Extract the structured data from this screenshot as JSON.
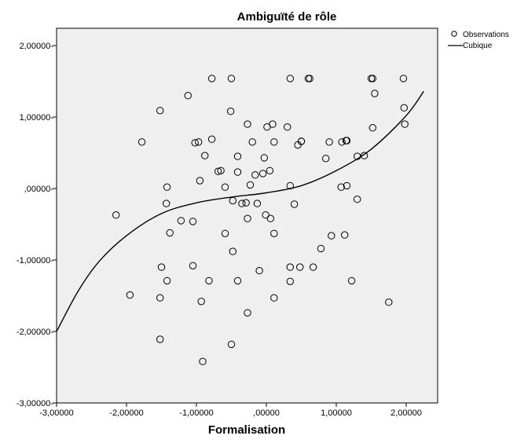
{
  "chart_data": {
    "type": "scatter",
    "title": "Ambiguïté de rôle",
    "xlabel": "Formalisation",
    "ylabel": "",
    "xlim": [
      -3.0,
      2.25
    ],
    "ylim": [
      -3.0,
      2.0
    ],
    "xticks": [
      -3,
      -2,
      -1,
      0,
      1,
      2
    ],
    "yticks": [
      -3,
      -2,
      -1,
      0,
      1,
      2
    ],
    "xtick_labels": [
      "-3,00000",
      "-2,00000",
      "-1,00000",
      ",00000",
      "1,00000",
      "2,00000"
    ],
    "ytick_labels": [
      "-3,00000-",
      "-2,00000-",
      "-1,00000-",
      ",00000-",
      "1,00000-",
      "2,00000-"
    ],
    "grid": false,
    "legend_position": "top-right",
    "plot_background": "#efefef",
    "marker_color": "#000000",
    "line_color": "#000000",
    "series": [
      {
        "name": "Observations",
        "kind": "points",
        "points": [
          [
            -2.15,
            -0.37
          ],
          [
            -1.95,
            -1.49
          ],
          [
            -1.78,
            0.65
          ],
          [
            -1.52,
            1.09
          ],
          [
            -1.5,
            -1.1
          ],
          [
            -1.52,
            -1.53
          ],
          [
            -1.52,
            -2.11
          ],
          [
            -1.43,
            -0.21
          ],
          [
            -1.42,
            0.02
          ],
          [
            -1.42,
            -1.29
          ],
          [
            -1.38,
            -0.62
          ],
          [
            -1.22,
            -0.45
          ],
          [
            -1.12,
            1.3
          ],
          [
            -1.05,
            -0.46
          ],
          [
            -1.05,
            -1.08
          ],
          [
            -1.02,
            0.64
          ],
          [
            -0.97,
            0.65
          ],
          [
            -0.95,
            0.11
          ],
          [
            -0.93,
            -1.58
          ],
          [
            -0.91,
            -2.42
          ],
          [
            -0.88,
            0.46
          ],
          [
            -0.82,
            -1.29
          ],
          [
            -0.78,
            1.54
          ],
          [
            -0.78,
            0.69
          ],
          [
            -0.69,
            0.24
          ],
          [
            -0.65,
            0.25
          ],
          [
            -0.59,
            0.02
          ],
          [
            -0.59,
            -0.63
          ],
          [
            -0.51,
            1.08
          ],
          [
            -0.5,
            1.54
          ],
          [
            -0.5,
            -2.18
          ],
          [
            -0.48,
            -0.17
          ],
          [
            -0.48,
            -0.88
          ],
          [
            -0.41,
            0.45
          ],
          [
            -0.41,
            -1.29
          ],
          [
            -0.41,
            0.23
          ],
          [
            -0.35,
            -0.21
          ],
          [
            -0.29,
            -0.2
          ],
          [
            -0.27,
            0.9
          ],
          [
            -0.27,
            -0.42
          ],
          [
            -0.27,
            -1.74
          ],
          [
            -0.23,
            0.05
          ],
          [
            -0.2,
            0.65
          ],
          [
            -0.16,
            0.19
          ],
          [
            -0.13,
            -0.21
          ],
          [
            -0.1,
            -1.15
          ],
          [
            -0.05,
            0.21
          ],
          [
            -0.03,
            0.43
          ],
          [
            -0.01,
            -0.37
          ],
          [
            0.01,
            0.86
          ],
          [
            0.05,
            0.25
          ],
          [
            0.06,
            -0.42
          ],
          [
            0.09,
            0.9
          ],
          [
            0.11,
            -0.63
          ],
          [
            0.11,
            0.65
          ],
          [
            0.11,
            -1.53
          ],
          [
            0.3,
            0.86
          ],
          [
            0.34,
            0.04
          ],
          [
            0.34,
            1.54
          ],
          [
            0.34,
            -1.1
          ],
          [
            0.34,
            -1.3
          ],
          [
            0.4,
            -0.22
          ],
          [
            0.45,
            0.61
          ],
          [
            0.48,
            -1.1
          ],
          [
            0.5,
            0.66
          ],
          [
            0.5,
            0.66
          ],
          [
            0.6,
            1.54
          ],
          [
            0.62,
            1.54
          ],
          [
            0.67,
            -1.1
          ],
          [
            0.78,
            -0.84
          ],
          [
            0.85,
            0.42
          ],
          [
            0.9,
            0.65
          ],
          [
            0.93,
            -0.66
          ],
          [
            1.07,
            0.02
          ],
          [
            1.08,
            0.65
          ],
          [
            1.12,
            -0.65
          ],
          [
            1.14,
            0.67
          ],
          [
            1.15,
            0.67
          ],
          [
            1.15,
            0.04
          ],
          [
            1.22,
            -1.29
          ],
          [
            1.3,
            -0.15
          ],
          [
            1.3,
            0.45
          ],
          [
            1.4,
            0.46
          ],
          [
            1.5,
            1.54
          ],
          [
            1.52,
            1.54
          ],
          [
            1.52,
            0.85
          ],
          [
            1.55,
            1.33
          ],
          [
            1.75,
            -1.59
          ],
          [
            1.96,
            1.54
          ],
          [
            1.97,
            1.13
          ],
          [
            1.98,
            0.9
          ]
        ]
      },
      {
        "name": "Cubique",
        "kind": "curve",
        "anchors": [
          [
            -3.0,
            -2.0
          ],
          [
            -2.7,
            -1.45
          ],
          [
            -2.4,
            -1.03
          ],
          [
            -2.0,
            -0.66
          ],
          [
            -1.5,
            -0.35
          ],
          [
            -1.0,
            -0.2
          ],
          [
            -0.5,
            -0.12
          ],
          [
            0.0,
            -0.06
          ],
          [
            0.5,
            0.04
          ],
          [
            1.0,
            0.25
          ],
          [
            1.5,
            0.55
          ],
          [
            2.0,
            1.02
          ],
          [
            2.25,
            1.36
          ]
        ]
      }
    ]
  }
}
